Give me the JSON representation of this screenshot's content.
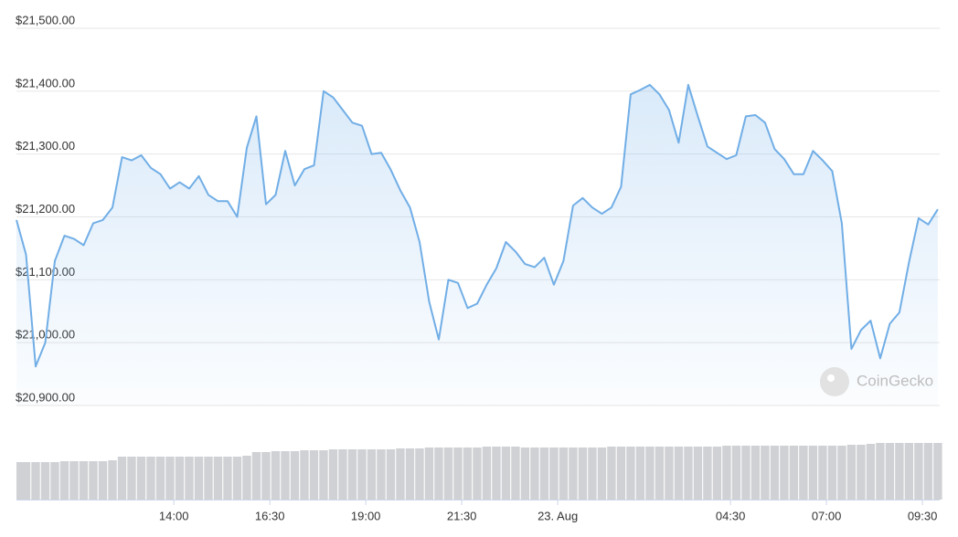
{
  "chart_data": {
    "type": "line",
    "color": "#71aee6",
    "volume_color": "#cfd1d4",
    "grid": true,
    "watermark": "CoinGecko",
    "xlim": [
      9.9,
      33.95
    ],
    "xticks": [
      {
        "value": 14,
        "label": "14:00"
      },
      {
        "value": 16.5,
        "label": "16:30"
      },
      {
        "value": 19,
        "label": "19:00"
      },
      {
        "value": 21.5,
        "label": "21:30"
      },
      {
        "value": 24,
        "label": "23. Aug"
      },
      {
        "value": 28.5,
        "label": "04:30"
      },
      {
        "value": 31,
        "label": "07:00"
      },
      {
        "value": 33.5,
        "label": "09:30"
      }
    ],
    "ylim": [
      20900,
      21500
    ],
    "yticks": [
      {
        "value": 20900,
        "label": "$20,900.00"
      },
      {
        "value": 21000,
        "label": "$21,000.00"
      },
      {
        "value": 21100,
        "label": "$21,100.00"
      },
      {
        "value": 21200,
        "label": "$21,200.00"
      },
      {
        "value": 21300,
        "label": "$21,300.00"
      },
      {
        "value": 21400,
        "label": "$21,400.00"
      },
      {
        "value": 21500,
        "label": "$21,500.00"
      }
    ],
    "x": [
      9.9,
      10.15,
      10.4,
      10.65,
      10.9,
      11.15,
      11.4,
      11.65,
      11.9,
      12.15,
      12.4,
      12.65,
      12.9,
      13.15,
      13.4,
      13.65,
      13.9,
      14.15,
      14.4,
      14.65,
      14.9,
      15.15,
      15.4,
      15.65,
      15.9,
      16.15,
      16.4,
      16.65,
      16.9,
      17.15,
      17.4,
      17.65,
      17.9,
      18.15,
      18.4,
      18.65,
      18.9,
      19.15,
      19.4,
      19.65,
      19.9,
      20.15,
      20.4,
      20.65,
      20.9,
      21.15,
      21.4,
      21.65,
      21.9,
      22.15,
      22.4,
      22.65,
      22.9,
      23.15,
      23.4,
      23.65,
      23.9,
      24.15,
      24.4,
      24.65,
      24.9,
      25.15,
      25.4,
      25.65,
      25.9,
      26.15,
      26.4,
      26.65,
      26.9,
      27.15,
      27.4,
      27.65,
      27.9,
      28.15,
      28.4,
      28.65,
      28.9,
      29.15,
      29.4,
      29.65,
      29.9,
      30.15,
      30.4,
      30.65,
      30.9,
      31.15,
      31.4,
      31.65,
      31.9,
      32.15,
      32.4,
      32.65,
      32.9,
      33.15,
      33.4,
      33.65,
      33.9
    ],
    "values": [
      21195,
      21140,
      20962,
      21000,
      21130,
      21170,
      21165,
      21155,
      21190,
      21195,
      21215,
      21295,
      21290,
      21298,
      21278,
      21268,
      21245,
      21255,
      21245,
      21265,
      21235,
      21225,
      21225,
      21200,
      21310,
      21360,
      21220,
      21235,
      21305,
      21250,
      21276,
      21282,
      21400,
      21390,
      21370,
      21350,
      21345,
      21300,
      21302,
      21275,
      21242,
      21215,
      21160,
      21065,
      21005,
      21100,
      21095,
      21055,
      21062,
      21092,
      21118,
      21160,
      21145,
      21125,
      21120,
      21135,
      21092,
      21130,
      21218,
      21230,
      21215,
      21205,
      21215,
      21248,
      21395,
      21402,
      21410,
      21395,
      21370,
      21318,
      21410,
      21360,
      21312,
      21302,
      21292,
      21298,
      21360,
      21362,
      21350,
      21308,
      21292,
      21268,
      21268,
      21305,
      21290,
      21273,
      21190,
      20990,
      21020,
      21035,
      20975,
      21030,
      21048,
      21128,
      21198,
      21188,
      21212
    ],
    "volumes": [
      41,
      41,
      41,
      41,
      41,
      42,
      42,
      42,
      42,
      42,
      43,
      47,
      47,
      47,
      47,
      47,
      47,
      47,
      47,
      47,
      47,
      47,
      47,
      47,
      48,
      52,
      52,
      53,
      53,
      53,
      54,
      54,
      54,
      55,
      55,
      55,
      55,
      55,
      55,
      55,
      56,
      56,
      56,
      57,
      57,
      57,
      57,
      57,
      57,
      58,
      58,
      58,
      58,
      57,
      57,
      57,
      57,
      57,
      57,
      57,
      57,
      57,
      58,
      58,
      58,
      58,
      58,
      58,
      58,
      58,
      58,
      58,
      58,
      58,
      59,
      59,
      59,
      59,
      59,
      59,
      59,
      59,
      59,
      59,
      59,
      59,
      59,
      60,
      60,
      61,
      62,
      62,
      62,
      62,
      62,
      62,
      62
    ]
  }
}
